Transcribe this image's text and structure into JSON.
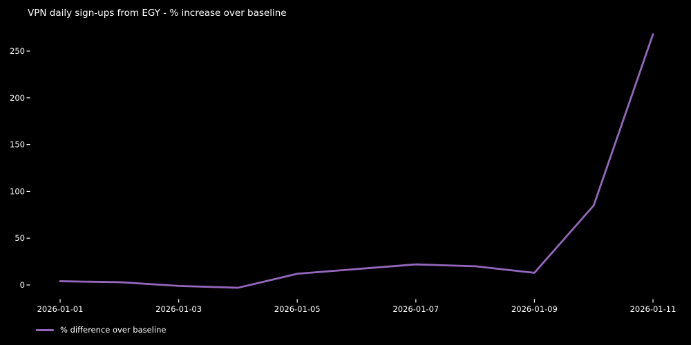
{
  "chart_data": {
    "type": "line",
    "title": "VPN daily sign-ups from EGY - % increase over baseline",
    "xlabel": "",
    "ylabel": "",
    "x": [
      "2026-01-01",
      "2026-01-02",
      "2026-01-03",
      "2026-01-04",
      "2026-01-05",
      "2026-01-06",
      "2026-01-07",
      "2026-01-08",
      "2026-01-09",
      "2026-01-10",
      "2026-01-11"
    ],
    "series": [
      {
        "name": "% difference over baseline",
        "values": [
          4,
          3,
          -1,
          -3,
          12,
          17,
          22,
          20,
          13,
          85,
          268
        ],
        "color": "#9467bd"
      }
    ],
    "x_tick_labels": [
      "2026-01-01",
      "2026-01-03",
      "2026-01-05",
      "2026-01-07",
      "2026-01-09",
      "2026-01-11"
    ],
    "y_ticks": [
      0,
      50,
      100,
      150,
      200,
      250
    ],
    "ylim": [
      -17,
      282
    ],
    "grid": false,
    "legend": {
      "position": "bottom-left",
      "entries": [
        {
          "label": "% difference over baseline",
          "color": "#9467bd"
        }
      ]
    },
    "background_color": "#000000",
    "text_color": "#ffffff"
  }
}
